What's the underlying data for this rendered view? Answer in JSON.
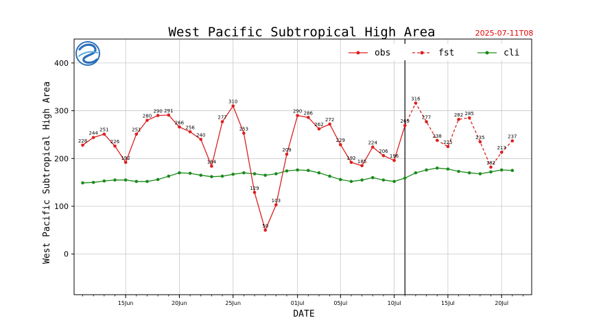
{
  "chart_data": {
    "type": "line",
    "title": "West Pacific Subtropical High Area",
    "issue_time": "2025-07-11T08",
    "xlabel": "DATE",
    "ylabel": "West Pacific Subtropical High Area",
    "ylim": [
      -85,
      450
    ],
    "yticks": [
      0,
      100,
      200,
      300,
      400
    ],
    "x_start_date": "2025-06-11",
    "x_range": [
      -0.8,
      41.8
    ],
    "xticks": [
      {
        "label": "15Jun",
        "index": 4
      },
      {
        "label": "20Jun",
        "index": 9
      },
      {
        "label": "25Jun",
        "index": 14
      },
      {
        "label": "01Jul",
        "index": 20
      },
      {
        "label": "05Jul",
        "index": 24
      },
      {
        "label": "10Jul",
        "index": 29
      },
      {
        "label": "15Jul",
        "index": 34
      },
      {
        "label": "20Jul",
        "index": 39
      }
    ],
    "grid": true,
    "legend_position": "top-right",
    "forecast_start_index": 30,
    "colors": {
      "obs": "#dc1e1e",
      "fst": "#dc1e1e",
      "cli": "#1a8a1a"
    },
    "series": [
      {
        "name": "obs",
        "style": "solid",
        "start_index": 0,
        "values": [
          228,
          244,
          251,
          226,
          192,
          251,
          280,
          290,
          291,
          266,
          256,
          240,
          184,
          277,
          310,
          253,
          129,
          50,
          103,
          209,
          290,
          286,
          262,
          272,
          229,
          192,
          185,
          224,
          206,
          196,
          269
        ]
      },
      {
        "name": "fst",
        "style": "dashed",
        "start_index": 30,
        "values": [
          269,
          316,
          277,
          238,
          225,
          282,
          285,
          235,
          182,
          213,
          237
        ]
      },
      {
        "name": "cli",
        "style": "solid",
        "start_index": 0,
        "values": [
          149,
          150,
          153,
          155,
          155,
          152,
          152,
          156,
          163,
          170,
          169,
          165,
          162,
          163,
          167,
          170,
          168,
          165,
          168,
          174,
          176,
          175,
          170,
          163,
          156,
          152,
          155,
          160,
          155,
          152,
          159,
          170,
          176,
          180,
          178,
          173,
          170,
          168,
          172,
          176,
          175
        ]
      }
    ]
  }
}
